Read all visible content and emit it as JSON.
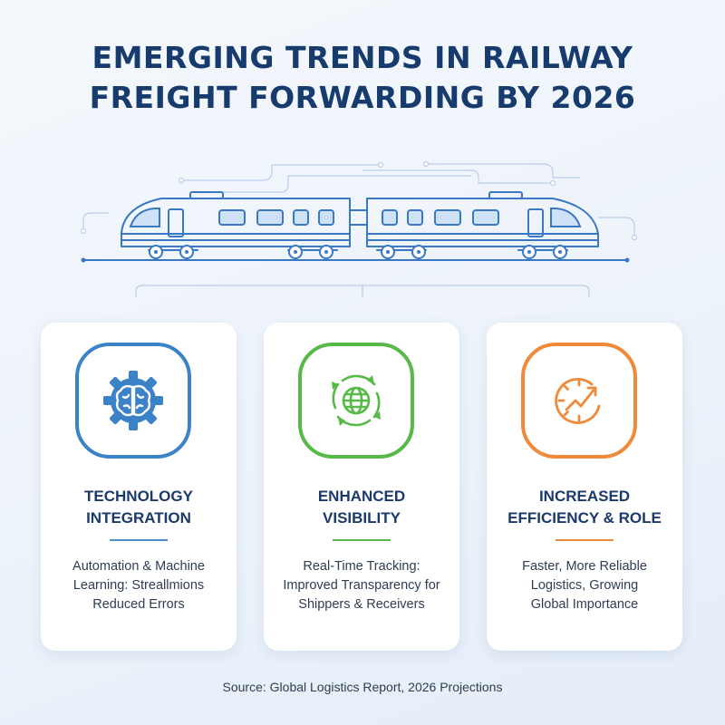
{
  "title": {
    "line1": "EMERGING TRENDS IN RAILWAY",
    "line2": "FREIGHT FORWARDING BY 2026"
  },
  "cards": [
    {
      "title_lines": [
        "TECHNOLOGY",
        "INTEGRATION"
      ],
      "desc_lines": [
        "Automation & Machine",
        "Learning: Streallmions",
        "Reduced Errors"
      ],
      "icon": "brain-gear-icon",
      "color": "#3b82c8"
    },
    {
      "title_lines": [
        "ENHANCED",
        "VISIBILITY"
      ],
      "desc_lines": [
        "Real-Time Tracking:",
        "Improved Transparency for",
        "Shippers & Receivers"
      ],
      "icon": "globe-sync-icon",
      "color": "#57b947"
    },
    {
      "title_lines": [
        "INCREASED",
        "EFFICIENCY & ROLE"
      ],
      "desc_lines": [
        "Faster, More Reliable",
        "Logistics, Growing",
        "Global Importance"
      ],
      "icon": "speed-trend-icon",
      "color": "#ef8a3a"
    }
  ],
  "source": "Source: Global Logistics Report, 2026 Projections",
  "colors": {
    "title": "#173b6d",
    "train_line": "#3b78c4",
    "window_fill": "#cfe1f6"
  }
}
